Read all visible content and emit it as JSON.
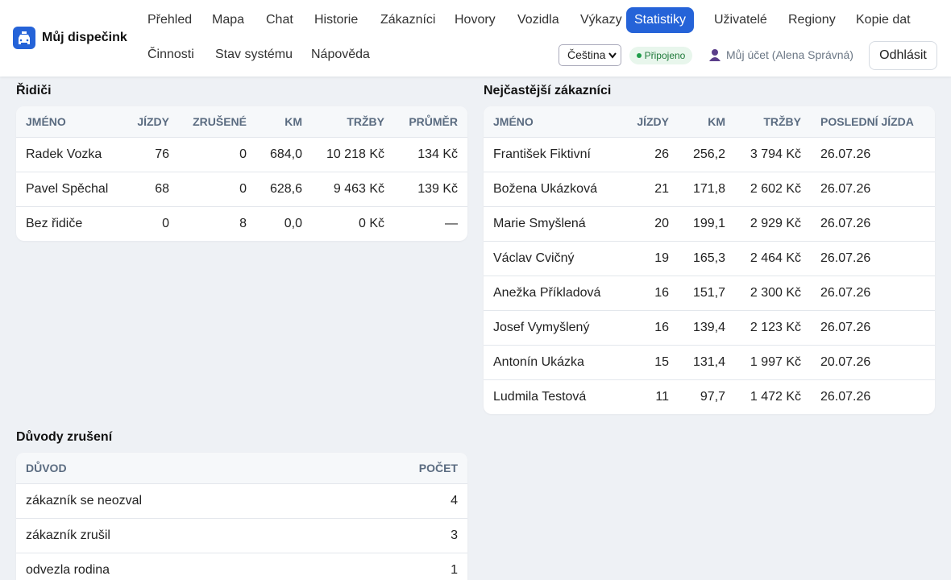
{
  "header": {
    "brand": "Můj dispečink",
    "nav": [
      "Přehled",
      "Mapa",
      "Chat",
      "Historie",
      "Zákazníci",
      "Hovory",
      "Vozidla",
      "Výkazy",
      "Statistiky",
      "Uživatelé",
      "Regiony",
      "Kopie dat",
      "Činnosti",
      "Stav systému",
      "Nápověda"
    ],
    "language": "Čeština",
    "status": "Připojeno",
    "account": "Můj účet (Alena Správná)",
    "logout": "Odhlásit"
  },
  "drivers": {
    "title": "Řidiči",
    "columns": [
      "Jméno",
      "Jízdy",
      "Zrušené",
      "Km",
      "Tržby",
      "Průměr"
    ],
    "rows": [
      [
        "Radek Vozka",
        "76",
        "0",
        "684,0",
        "10 218 Kč",
        "134 Kč"
      ],
      [
        "Pavel Spěchal",
        "68",
        "0",
        "628,6",
        "9 463 Kč",
        "139 Kč"
      ],
      [
        "Bez řidiče",
        "0",
        "8",
        "0,0",
        "0 Kč",
        "—"
      ]
    ]
  },
  "customers": {
    "title": "Nejčastější zákazníci",
    "columns": [
      "Jméno",
      "Jízdy",
      "Km",
      "Tržby",
      "Poslední jízda"
    ],
    "rows": [
      [
        "František Fiktivní",
        "26",
        "256,2",
        "3 794 Kč",
        "26.07.26"
      ],
      [
        "Božena Ukázková",
        "21",
        "171,8",
        "2 602 Kč",
        "26.07.26"
      ],
      [
        "Marie Smyšlená",
        "20",
        "199,1",
        "2 929 Kč",
        "26.07.26"
      ],
      [
        "Václav Cvičný",
        "19",
        "165,3",
        "2 464 Kč",
        "26.07.26"
      ],
      [
        "Anežka Příkladová",
        "16",
        "151,7",
        "2 300 Kč",
        "26.07.26"
      ],
      [
        "Josef Vymyšlený",
        "16",
        "139,4",
        "2 123 Kč",
        "26.07.26"
      ],
      [
        "Antonín Ukázka",
        "15",
        "131,4",
        "1 997 Kč",
        "20.07.26"
      ],
      [
        "Ludmila Testová",
        "11",
        "97,7",
        "1 472 Kč",
        "26.07.26"
      ]
    ]
  },
  "reasons": {
    "title": "Důvody zrušení",
    "columns": [
      "Důvod",
      "Počet"
    ],
    "rows": [
      [
        "zákazník se neozval",
        "4"
      ],
      [
        "zákazník zrušil",
        "3"
      ],
      [
        "odvezla rodina",
        "1"
      ]
    ]
  }
}
